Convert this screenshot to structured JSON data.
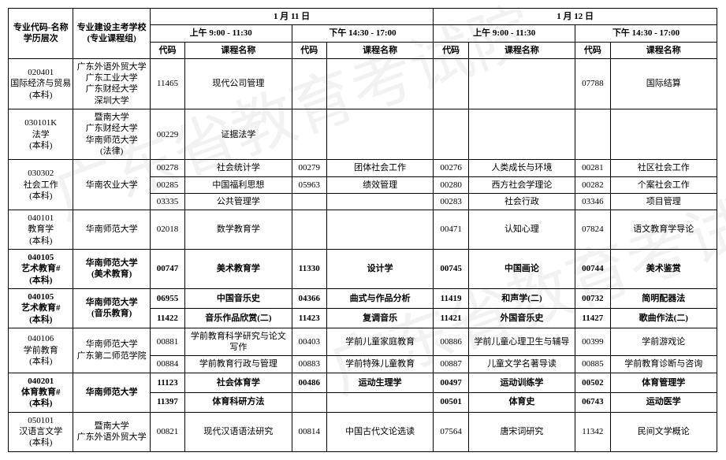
{
  "header": {
    "col_major": "专业代码-名称\n学历层次",
    "col_school": "专业建设主考学校\n(专业课程组)",
    "day1": "1 月 11 日",
    "day2": "1 月 12 日",
    "am": "上午  9:00 - 11:30",
    "pm": "下午  14:30 - 17:00",
    "code": "代码",
    "course": "课程名称"
  },
  "groups": [
    {
      "major": "020401\n国际经济与贸易\n(本科)",
      "school": "广东外语外贸大学\n广东工业大学\n广东财经大学\n深圳大学",
      "tall": true,
      "rows": [
        {
          "c": [
            "11465",
            "现代公司管理",
            "",
            "",
            "",
            "",
            "07788",
            "国际结算"
          ]
        }
      ]
    },
    {
      "major": "030101K\n法学\n(本科)",
      "school": "暨南大学\n广东财经大学\n华南师范大学\n(法律)",
      "tall": true,
      "rows": [
        {
          "c": [
            "00229",
            "证据法学",
            "",
            "",
            "",
            "",
            "",
            ""
          ]
        }
      ]
    },
    {
      "major": "030302\n社会工作\n(本科)",
      "school": "华南农业大学",
      "rows": [
        {
          "c": [
            "00278",
            "社会统计学",
            "00279",
            "团体社会工作",
            "00276",
            "人类成长与环境",
            "00281",
            "社区社会工作"
          ]
        },
        {
          "c": [
            "00285",
            "中国福利思想",
            "05963",
            "绩效管理",
            "00280",
            "西方社会学理论",
            "00282",
            "个案社会工作"
          ]
        },
        {
          "c": [
            "03335",
            "公共管理学",
            "",
            "",
            "00283",
            "社会行政",
            "03346",
            "项目管理"
          ]
        }
      ]
    },
    {
      "major": "040101\n教育学\n(本科)",
      "school": "华南师范大学",
      "rows": [
        {
          "c": [
            "02018",
            "数学教育学",
            "",
            "",
            "00471",
            "认知心理",
            "07824",
            "语文教育学导论"
          ]
        }
      ]
    },
    {
      "major": "040105\n艺术教育#\n(本科)",
      "school": "华南师范大学\n(美术教育)",
      "bold": true,
      "rows": [
        {
          "c": [
            "00747",
            "美术教育学",
            "11330",
            "设计学",
            "00745",
            "中国画论",
            "00744",
            "美术鉴赏"
          ]
        }
      ]
    },
    {
      "major": "040105\n艺术教育#\n(本科)",
      "school": "华南师范大学\n(音乐教育)",
      "bold": true,
      "rows": [
        {
          "c": [
            "06955",
            "中国音乐史",
            "04366",
            "曲式与作品分析",
            "11419",
            "和声学(二)",
            "00732",
            "简明配器法"
          ]
        },
        {
          "c": [
            "11422",
            "音乐作品欣赏(二)",
            "11423",
            "复调音乐",
            "11421",
            "外国音乐史",
            "11427",
            "歌曲作法(二)"
          ]
        }
      ]
    },
    {
      "major": "040106\n学前教育\n(本科)",
      "school": "华南师范大学\n广东第二师范学院",
      "rows": [
        {
          "c": [
            "00881",
            "学前教育科学研究与论文写作",
            "00403",
            "学前儿童家庭教育",
            "00886",
            "学前儿童心理卫生与辅导",
            "00399",
            "学前游戏论"
          ]
        },
        {
          "c": [
            "00884",
            "学前教育行政与管理",
            "00883",
            "学前特殊儿童教育",
            "00887",
            "儿童文学名著导读",
            "00885",
            "学前教育诊断与咨询"
          ]
        }
      ]
    },
    {
      "major": "040201\n体育教育#\n(本科)",
      "school": "华南师范大学",
      "bold": true,
      "rows": [
        {
          "c": [
            "11123",
            "社会体育学",
            "00486",
            "运动生理学",
            "00497",
            "运动训练学",
            "00502",
            "体育管理学"
          ]
        },
        {
          "c": [
            "11397",
            "体育科研方法",
            "",
            "",
            "00501",
            "体育史",
            "06743",
            "运动医学"
          ]
        }
      ]
    },
    {
      "major": "050101\n汉语言文学\n(本科)",
      "school": "暨南大学\n广东外语外贸大学",
      "rows": [
        {
          "c": [
            "00821",
            "现代汉语语法研究",
            "00814",
            "中国古代文论选读",
            "07564",
            "唐宋词研究",
            "11342",
            "民间文学概论"
          ]
        }
      ]
    }
  ]
}
